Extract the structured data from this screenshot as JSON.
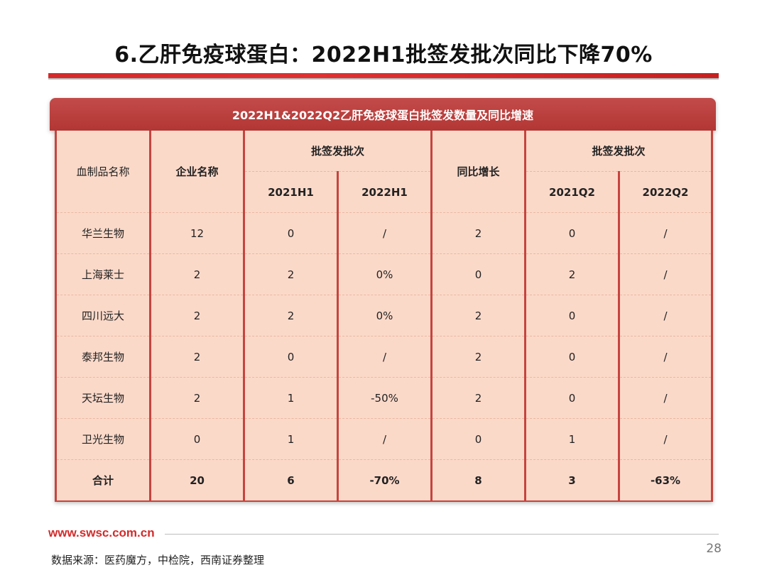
{
  "page": {
    "title": "6.乙肝免疫球蛋白：2022H1批签发批次同比下降70%",
    "footer_url": "www.swsc.com.cn",
    "page_number": "28",
    "source": "数据来源：医药魔方，中检院，西南证券整理"
  },
  "table": {
    "caption": "2022H1&2022Q2乙肝免疫球蛋白批签发数量及同比增速",
    "headers": {
      "col1": "血制品名称",
      "col2": "企业名称",
      "group1": "批签发批次",
      "h1_2021": "2021H1",
      "h1_2022": "2022H1",
      "col5": "同比增长",
      "group2": "批签发批次",
      "q2_2021": "2021Q2",
      "q2_2022": "2022Q2"
    },
    "rows": [
      [
        "华兰生物",
        "12",
        "0",
        "/",
        "2",
        "0",
        "/"
      ],
      [
        "上海莱士",
        "2",
        "2",
        "0%",
        "0",
        "2",
        "/"
      ],
      [
        "四川远大",
        "2",
        "2",
        "0%",
        "2",
        "0",
        "/"
      ],
      [
        "泰邦生物",
        "2",
        "0",
        "/",
        "2",
        "0",
        "/"
      ],
      [
        "天坛生物",
        "2",
        "1",
        "-50%",
        "2",
        "0",
        "/"
      ],
      [
        "卫光生物",
        "0",
        "1",
        "/",
        "0",
        "1",
        "/"
      ],
      [
        "合计",
        "20",
        "6",
        "-70%",
        "8",
        "3",
        "-63%"
      ]
    ]
  }
}
